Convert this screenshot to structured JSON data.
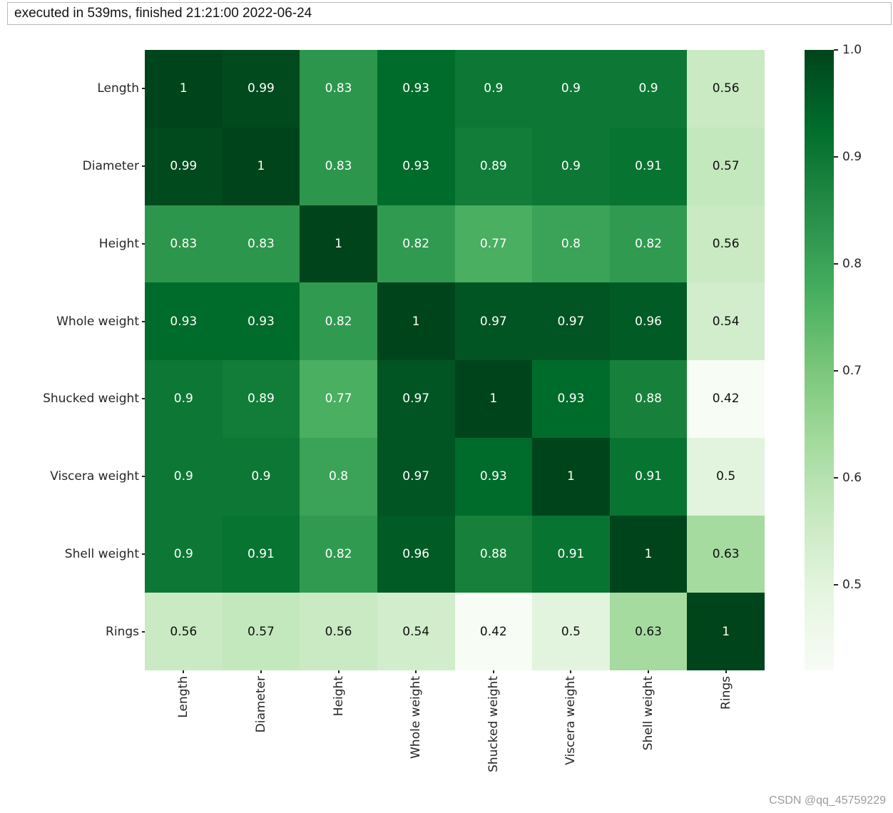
{
  "status_bar": {
    "text": "executed in 539ms, finished 21:21:00 2022-06-24"
  },
  "chart_data": {
    "type": "heatmap",
    "title": "",
    "row_labels": [
      "Length",
      "Diameter",
      "Height",
      "Whole weight",
      "Shucked weight",
      "Viscera weight",
      "Shell weight",
      "Rings"
    ],
    "col_labels": [
      "Length",
      "Diameter",
      "Height",
      "Whole weight",
      "Shucked weight",
      "Viscera weight",
      "Shell weight",
      "Rings"
    ],
    "matrix": [
      [
        1,
        0.99,
        0.83,
        0.93,
        0.9,
        0.9,
        0.9,
        0.56
      ],
      [
        0.99,
        1,
        0.83,
        0.93,
        0.89,
        0.9,
        0.91,
        0.57
      ],
      [
        0.83,
        0.83,
        1,
        0.82,
        0.77,
        0.8,
        0.82,
        0.56
      ],
      [
        0.93,
        0.93,
        0.82,
        1,
        0.97,
        0.97,
        0.96,
        0.54
      ],
      [
        0.9,
        0.89,
        0.77,
        0.97,
        1,
        0.93,
        0.88,
        0.42
      ],
      [
        0.9,
        0.9,
        0.8,
        0.97,
        0.93,
        1,
        0.91,
        0.5
      ],
      [
        0.9,
        0.91,
        0.82,
        0.96,
        0.88,
        0.91,
        1,
        0.63
      ],
      [
        0.56,
        0.57,
        0.56,
        0.54,
        0.42,
        0.5,
        0.63,
        1
      ]
    ],
    "vmin": 0.42,
    "vmax": 1.0,
    "annotated": true,
    "grid": false,
    "legend_position": "right-colorbar",
    "colormap": {
      "name": "Greens",
      "stops": [
        {
          "pos": 0.0,
          "color": "#f7fcf5"
        },
        {
          "pos": 0.125,
          "color": "#e5f5e0"
        },
        {
          "pos": 0.25,
          "color": "#c7e9c0"
        },
        {
          "pos": 0.375,
          "color": "#a1d99b"
        },
        {
          "pos": 0.5,
          "color": "#74c476"
        },
        {
          "pos": 0.625,
          "color": "#41ab5d"
        },
        {
          "pos": 0.75,
          "color": "#238b45"
        },
        {
          "pos": 0.875,
          "color": "#006d2c"
        },
        {
          "pos": 1.0,
          "color": "#00441b"
        }
      ]
    },
    "annotation_colors": {
      "on_dark": "#ffffff",
      "on_light": "#101010"
    },
    "colorbar_ticks": [
      {
        "value": 1.0,
        "label": "1.0"
      },
      {
        "value": 0.9,
        "label": "0.9"
      },
      {
        "value": 0.8,
        "label": "0.8"
      },
      {
        "value": 0.7,
        "label": "0.7"
      },
      {
        "value": 0.6,
        "label": "0.6"
      },
      {
        "value": 0.5,
        "label": "0.5"
      }
    ]
  },
  "watermark": {
    "text": "CSDN @qq_45759229"
  }
}
